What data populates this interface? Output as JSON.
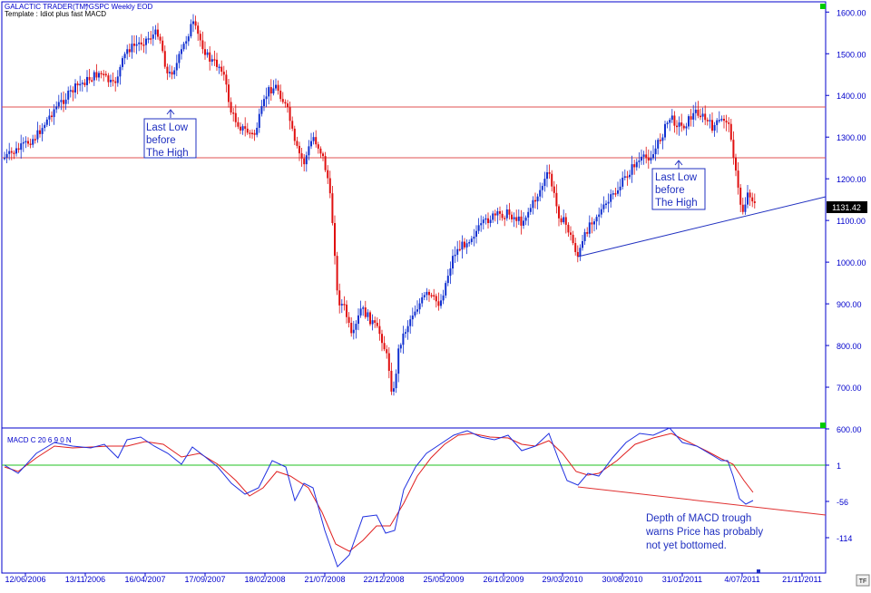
{
  "header": {
    "app_name": "GALACTIC TRADER(TM)",
    "symbol": "^GSPC Weekly  EOD",
    "template": "Template : Idiot plus fast MACD"
  },
  "price_panel": {
    "y_ticks": [
      "1600.00",
      "1500.00",
      "1400.00",
      "1300.00",
      "1200.00",
      "1100.00",
      "1000.00",
      "900.00",
      "800.00",
      "700.00",
      "600.00"
    ],
    "last_price": "1131.42",
    "annotation_1": [
      "Last Low",
      "before",
      "The High"
    ],
    "annotation_2": [
      "Last Low",
      "before",
      "The High"
    ]
  },
  "macd_panel": {
    "label": "MACD C 20 6 9 0 N",
    "y_ticks": [
      "1",
      "-56",
      "-114"
    ],
    "annotation": [
      "Depth of MACD trough",
      "warns Price has probably",
      "not yet bottomed."
    ]
  },
  "x_ticks": [
    "12/06/2006",
    "13/11/2006",
    "16/04/2007",
    "17/09/2007",
    "18/02/2008",
    "21/07/2008",
    "22/12/2008",
    "25/05/2009",
    "26/10/2009",
    "29/03/2010",
    "30/08/2010",
    "31/01/2011",
    "4/07/2011",
    "21/11/2011"
  ],
  "corner_label": "TF",
  "chart_data": [
    {
      "type": "line",
      "title": "^GSPC Weekly",
      "ylim": [
        600,
        1600
      ],
      "x": [
        "12/06/2006",
        "13/11/2006",
        "16/04/2007",
        "17/09/2007",
        "18/02/2008",
        "21/07/2008",
        "22/12/2008",
        "25/05/2009",
        "26/10/2009",
        "29/03/2010",
        "30/08/2010",
        "31/01/2011",
        "4/07/2011"
      ],
      "series": [
        {
          "values": [
            1250,
            1390,
            1510,
            1520,
            1340,
            1260,
            870,
            900,
            1090,
            1170,
            1080,
            1300,
            1330
          ]
        }
      ],
      "horizontal_lines": [
        1370,
        1250
      ],
      "trend_line": [
        [
          1010,
          1110
        ]
      ],
      "last_value": 1131.42,
      "grid": false
    },
    {
      "type": "line",
      "title": "MACD C 20 6 9 0 N",
      "ylim": [
        -140,
        40
      ],
      "series": [
        {
          "values": [
            -5,
            25,
            35,
            20,
            -70,
            -10,
            -120,
            30,
            30,
            -10,
            10,
            40,
            -60
          ]
        },
        {
          "values": [
            -5,
            20,
            30,
            20,
            -55,
            -10,
            -90,
            5,
            25,
            0,
            0,
            35,
            -45
          ]
        }
      ],
      "zero_line": 1,
      "grid": false
    }
  ]
}
